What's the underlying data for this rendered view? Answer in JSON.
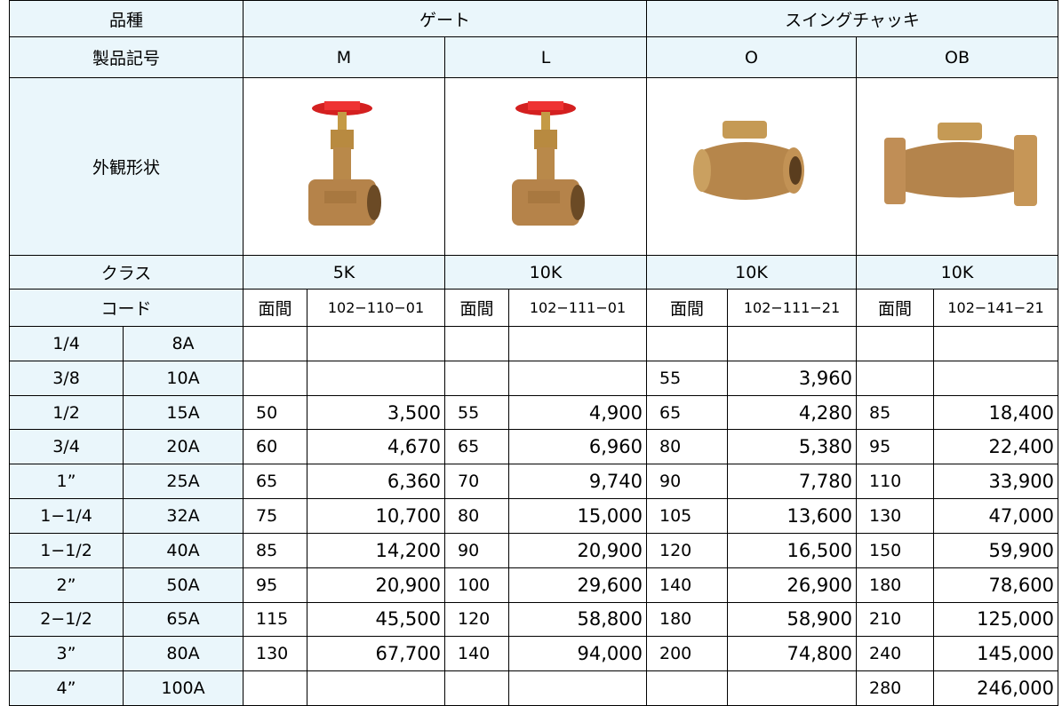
{
  "header": {
    "variety_label": "品種",
    "groups": [
      {
        "label": "ゲート"
      },
      {
        "label": "スイングチャッキ"
      }
    ]
  },
  "row_labels": {
    "product_code": "製品記号",
    "appearance": "外観形状",
    "class": "クラス",
    "code": "コード"
  },
  "products": [
    {
      "code": "M",
      "class": "5K",
      "face_label": "面間",
      "item_code": "102−110−01"
    },
    {
      "code": "L",
      "class": "10K",
      "face_label": "面間",
      "item_code": "102−111−01"
    },
    {
      "code": "O",
      "class": "10K",
      "face_label": "面間",
      "item_code": "102−111−21"
    },
    {
      "code": "OB",
      "class": "10K",
      "face_label": "面間",
      "item_code": "102−141−21"
    }
  ],
  "rows": [
    {
      "inch": "1/4",
      "a": "8A",
      "cells": [
        [
          null,
          null
        ],
        [
          null,
          null
        ],
        [
          null,
          null
        ],
        [
          null,
          null
        ]
      ]
    },
    {
      "inch": "3/8",
      "a": "10A",
      "cells": [
        [
          null,
          null
        ],
        [
          null,
          null
        ],
        [
          55,
          "3,960"
        ],
        [
          null,
          null
        ]
      ]
    },
    {
      "inch": "1/2",
      "a": "15A",
      "cells": [
        [
          50,
          "3,500"
        ],
        [
          55,
          "4,900"
        ],
        [
          65,
          "4,280"
        ],
        [
          85,
          "18,400"
        ]
      ]
    },
    {
      "inch": "3/4",
      "a": "20A",
      "cells": [
        [
          60,
          "4,670"
        ],
        [
          65,
          "6,960"
        ],
        [
          80,
          "5,380"
        ],
        [
          95,
          "22,400"
        ]
      ]
    },
    {
      "inch": "1”",
      "a": "25A",
      "cells": [
        [
          65,
          "6,360"
        ],
        [
          70,
          "9,740"
        ],
        [
          90,
          "7,780"
        ],
        [
          110,
          "33,900"
        ]
      ]
    },
    {
      "inch": "1−1/4",
      "a": "32A",
      "cells": [
        [
          75,
          "10,700"
        ],
        [
          80,
          "15,000"
        ],
        [
          105,
          "13,600"
        ],
        [
          130,
          "47,000"
        ]
      ]
    },
    {
      "inch": "1−1/2",
      "a": "40A",
      "cells": [
        [
          85,
          "14,200"
        ],
        [
          90,
          "20,900"
        ],
        [
          120,
          "16,500"
        ],
        [
          150,
          "59,900"
        ]
      ]
    },
    {
      "inch": "2”",
      "a": "50A",
      "cells": [
        [
          95,
          "20,900"
        ],
        [
          100,
          "29,600"
        ],
        [
          140,
          "26,900"
        ],
        [
          180,
          "78,600"
        ]
      ]
    },
    {
      "inch": "2−1/2",
      "a": "65A",
      "cells": [
        [
          115,
          "45,500"
        ],
        [
          120,
          "58,800"
        ],
        [
          180,
          "58,900"
        ],
        [
          210,
          "125,000"
        ]
      ]
    },
    {
      "inch": "3”",
      "a": "80A",
      "cells": [
        [
          130,
          "67,700"
        ],
        [
          140,
          "94,000"
        ],
        [
          200,
          "74,800"
        ],
        [
          240,
          "145,000"
        ]
      ]
    },
    {
      "inch": "4”",
      "a": "100A",
      "cells": [
        [
          null,
          null
        ],
        [
          null,
          null
        ],
        [
          null,
          null
        ],
        [
          280,
          "246,000"
        ]
      ]
    }
  ]
}
